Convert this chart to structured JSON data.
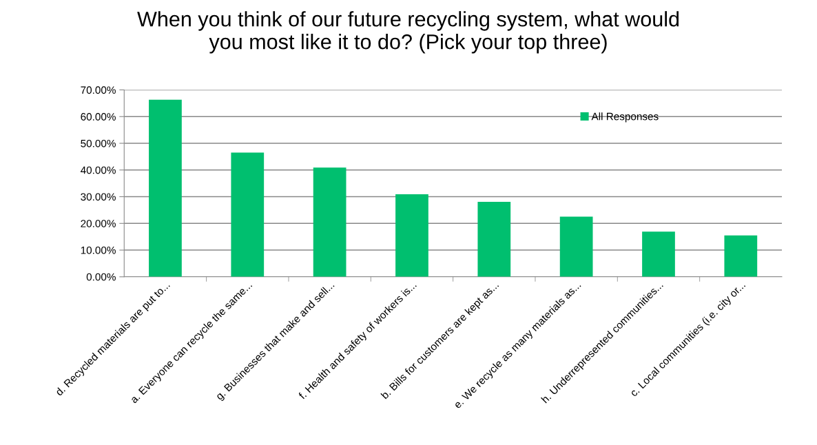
{
  "chart_data": {
    "type": "bar",
    "title": "When you think of our future recycling system, what would\nyou most like it to do? (Pick your top three)",
    "categories": [
      "d. Recycled materials are put to...",
      "a. Everyone can recycle the same...",
      "g. Businesses that make and sell...",
      "f. Health and safety of workers is...",
      "b. Bills for customers are kept as...",
      "e. We recycle as many materials as...",
      "h. Underrepresented communities...",
      "c. Local communities (i.e. city or..."
    ],
    "series": [
      {
        "name": "All Responses",
        "color": "#00bf6f",
        "values": [
          66.3,
          46.5,
          40.9,
          30.9,
          28.1,
          22.5,
          16.9,
          15.5
        ]
      }
    ],
    "ylim": [
      0,
      70
    ],
    "yticks": [
      {
        "value": 0,
        "label": "0.00%"
      },
      {
        "value": 10,
        "label": "10.00%"
      },
      {
        "value": 20,
        "label": "20.00%"
      },
      {
        "value": 30,
        "label": "30.00%"
      },
      {
        "value": 40,
        "label": "40.00%"
      },
      {
        "value": 50,
        "label": "50.00%"
      },
      {
        "value": 60,
        "label": "60.00%"
      },
      {
        "value": 70,
        "label": "70.00%"
      }
    ],
    "grid": "y",
    "legend": "top right"
  }
}
